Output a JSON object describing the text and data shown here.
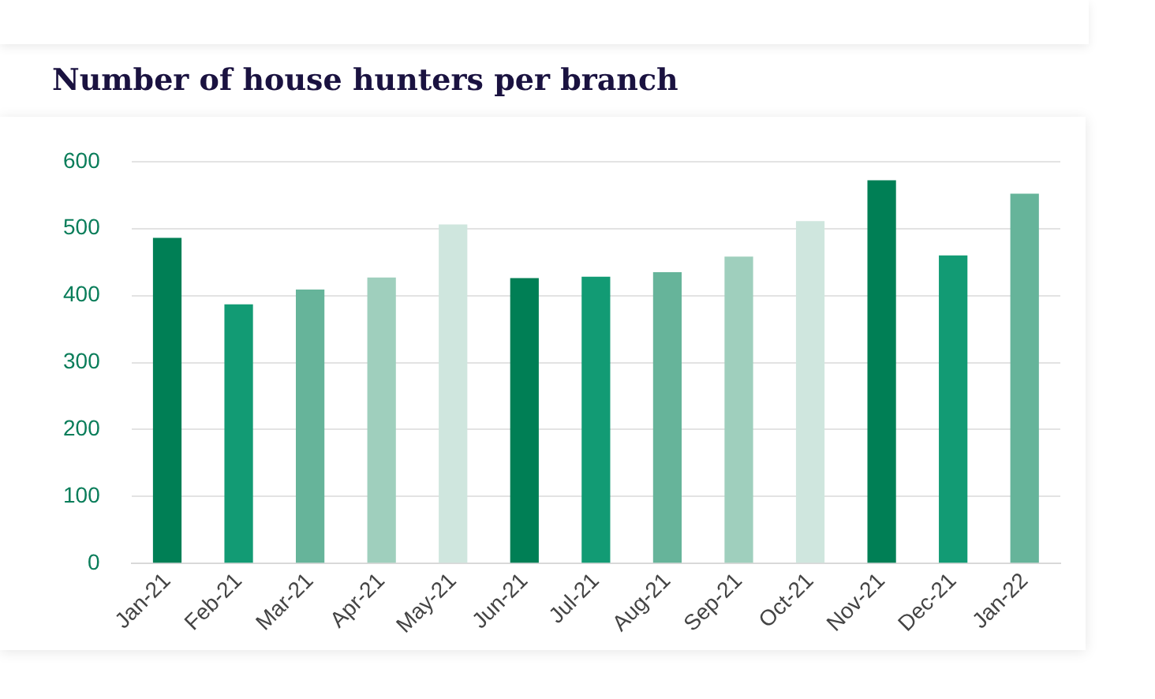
{
  "chart_data": {
    "type": "bar",
    "title": "Number of house hunters per branch",
    "categories": [
      "Jan-21",
      "Feb-21",
      "Mar-21",
      "Apr-21",
      "May-21",
      "Jun-21",
      "Jul-21",
      "Aug-21",
      "Sep-21",
      "Oct-21",
      "Nov-21",
      "Dec-21",
      "Jan-22"
    ],
    "values": [
      486,
      387,
      409,
      427,
      506,
      426,
      428,
      435,
      458,
      511,
      572,
      460,
      552
    ],
    "colors": [
      "#007f55",
      "#129b74",
      "#66b49a",
      "#9fcfbd",
      "#cfe6de",
      "#007f55",
      "#129b74",
      "#66b49a",
      "#9fcfbd",
      "#cfe6de",
      "#007f55",
      "#129b74",
      "#66b49a"
    ],
    "ylim": [
      0,
      600
    ],
    "yticks": [
      0,
      100,
      200,
      300,
      400,
      500,
      600
    ],
    "grid": "y"
  }
}
